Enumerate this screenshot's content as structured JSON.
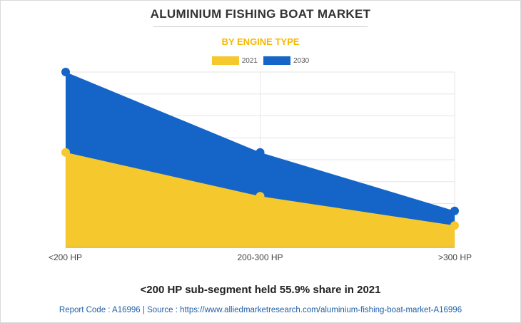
{
  "chart_data": {
    "type": "area",
    "title": "ALUMINIUM FISHING BOAT MARKET",
    "subtitle": "BY ENGINE TYPE",
    "categories": [
      "<200 HP",
      "200-300 HP",
      ">300 HP"
    ],
    "series": [
      {
        "name": "2021",
        "values": [
          39,
          21,
          9
        ],
        "color": "#f5c82e"
      },
      {
        "name": "2030",
        "values": [
          72,
          39,
          15
        ],
        "color": "#1565c8"
      }
    ],
    "ylim": [
      0,
      72
    ],
    "grid": true,
    "legend": "top-center",
    "xlabel": "",
    "ylabel": ""
  },
  "footer": {
    "headline": "<200 HP sub-segment held 55.9% share in 2021",
    "source": "Report Code : A16996  |  Source : https://www.alliedmarketresearch.com/aluminium-fishing-boat-market-A16996"
  }
}
